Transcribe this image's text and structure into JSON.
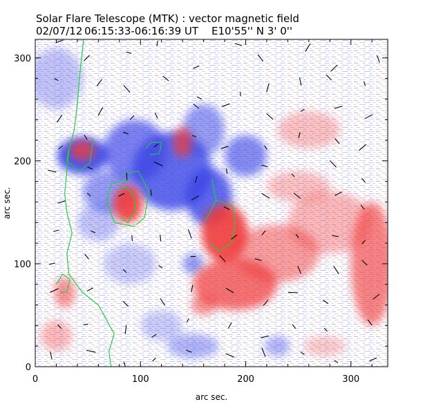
{
  "header": {
    "title": "Solar Flare Telescope (MTK) : vector magnetic field",
    "date": "02/07/12",
    "time_range": "06:15:33-06:16:39 UT",
    "position": "E10'55''  N 3' 0''"
  },
  "axes": {
    "xlabel": "arc sec.",
    "ylabel": "arc sec.",
    "xlim": [
      0,
      335
    ],
    "ylim": [
      0,
      318
    ],
    "xticks": [
      0,
      100,
      200,
      300
    ],
    "yticks": [
      0,
      100,
      200,
      300
    ],
    "xminor_step": 20,
    "yminor_step": 20
  },
  "colors": {
    "negative_polarity": "#3c46e6",
    "positive_polarity": "#f03c3c",
    "contour": "#22cc44",
    "vector": "#000000",
    "background": "#ffffff"
  },
  "chart_data": {
    "type": "heatmap",
    "title": "Solar Flare Telescope (MTK) : vector magnetic field",
    "xlabel": "arc sec.",
    "ylabel": "arc sec.",
    "xlim": [
      0,
      335
    ],
    "ylim": [
      0,
      318
    ],
    "legend": "none",
    "grid": false,
    "negative_regions": [
      {
        "x": 45,
        "y": 205,
        "rx": 24,
        "ry": 18,
        "w": 1.0
      },
      {
        "x": 95,
        "y": 210,
        "rx": 30,
        "ry": 30,
        "w": 0.75
      },
      {
        "x": 130,
        "y": 190,
        "rx": 38,
        "ry": 38,
        "w": 0.9
      },
      {
        "x": 165,
        "y": 165,
        "rx": 22,
        "ry": 28,
        "w": 0.9
      },
      {
        "x": 160,
        "y": 230,
        "rx": 20,
        "ry": 25,
        "w": 0.6
      },
      {
        "x": 70,
        "y": 170,
        "rx": 25,
        "ry": 20,
        "w": 0.6
      },
      {
        "x": 200,
        "y": 205,
        "rx": 20,
        "ry": 20,
        "w": 0.7
      },
      {
        "x": 150,
        "y": 100,
        "rx": 10,
        "ry": 10,
        "w": 0.6
      },
      {
        "x": 150,
        "y": 20,
        "rx": 24,
        "ry": 12,
        "w": 0.45
      },
      {
        "x": 230,
        "y": 20,
        "rx": 12,
        "ry": 10,
        "w": 0.45
      },
      {
        "x": 20,
        "y": 280,
        "rx": 25,
        "ry": 30,
        "w": 0.35
      },
      {
        "x": 60,
        "y": 140,
        "rx": 20,
        "ry": 18,
        "w": 0.35
      },
      {
        "x": 90,
        "y": 100,
        "rx": 25,
        "ry": 20,
        "w": 0.3
      },
      {
        "x": 120,
        "y": 40,
        "rx": 20,
        "ry": 15,
        "w": 0.3
      }
    ],
    "positive_regions": [
      {
        "x": 180,
        "y": 130,
        "rx": 22,
        "ry": 28,
        "w": 1.0
      },
      {
        "x": 88,
        "y": 158,
        "rx": 14,
        "ry": 18,
        "w": 1.0
      },
      {
        "x": 45,
        "y": 210,
        "rx": 12,
        "ry": 10,
        "w": 0.85
      },
      {
        "x": 140,
        "y": 218,
        "rx": 9,
        "ry": 15,
        "w": 0.8
      },
      {
        "x": 190,
        "y": 80,
        "rx": 40,
        "ry": 25,
        "w": 0.8
      },
      {
        "x": 230,
        "y": 110,
        "rx": 40,
        "ry": 28,
        "w": 0.55
      },
      {
        "x": 320,
        "y": 100,
        "rx": 20,
        "ry": 60,
        "w": 0.7
      },
      {
        "x": 280,
        "y": 140,
        "rx": 40,
        "ry": 30,
        "w": 0.4
      },
      {
        "x": 28,
        "y": 72,
        "rx": 10,
        "ry": 15,
        "w": 0.6
      },
      {
        "x": 160,
        "y": 60,
        "rx": 12,
        "ry": 10,
        "w": 0.6
      },
      {
        "x": 260,
        "y": 230,
        "rx": 30,
        "ry": 18,
        "w": 0.35
      },
      {
        "x": 250,
        "y": 175,
        "rx": 30,
        "ry": 15,
        "w": 0.35
      },
      {
        "x": 20,
        "y": 30,
        "rx": 15,
        "ry": 15,
        "w": 0.4
      },
      {
        "x": 275,
        "y": 20,
        "rx": 20,
        "ry": 10,
        "w": 0.3
      }
    ],
    "limb_line": [
      [
        46,
        318
      ],
      [
        44,
        300
      ],
      [
        42,
        280
      ],
      [
        40,
        255
      ],
      [
        37,
        230
      ],
      [
        32,
        210
      ],
      [
        30,
        190
      ],
      [
        28,
        168
      ],
      [
        30,
        150
      ],
      [
        35,
        130
      ],
      [
        30,
        110
      ],
      [
        32,
        90
      ],
      [
        45,
        72
      ],
      [
        60,
        60
      ],
      [
        68,
        45
      ],
      [
        75,
        32
      ],
      [
        70,
        15
      ],
      [
        72,
        0
      ]
    ],
    "contours": [
      [
        [
          55,
          222
        ],
        [
          52,
          198
        ],
        [
          42,
          190
        ],
        [
          30,
          200
        ],
        [
          32,
          212
        ]
      ],
      [
        [
          80,
          172
        ],
        [
          86,
          175
        ],
        [
          94,
          165
        ],
        [
          95,
          152
        ],
        [
          88,
          140
        ],
        [
          82,
          145
        ]
      ],
      [
        [
          90,
          182
        ],
        [
          72,
          178
        ],
        [
          68,
          160
        ],
        [
          75,
          140
        ],
        [
          95,
          136
        ]
      ],
      [
        [
          162,
          142
        ],
        [
          172,
          162
        ],
        [
          188,
          156
        ],
        [
          190,
          138
        ],
        [
          186,
          120
        ],
        [
          175,
          112
        ],
        [
          166,
          120
        ]
      ],
      [
        [
          172,
          160
        ],
        [
          168,
          182
        ]
      ],
      [
        [
          105,
          212
        ],
        [
          110,
          218
        ],
        [
          120,
          218
        ],
        [
          118,
          207
        ],
        [
          109,
          206
        ]
      ],
      [
        [
          20,
          80
        ],
        [
          26,
          90
        ],
        [
          33,
          85
        ],
        [
          30,
          73
        ],
        [
          24,
          72
        ]
      ],
      [
        [
          84,
          188
        ],
        [
          98,
          190
        ],
        [
          108,
          170
        ],
        [
          104,
          145
        ],
        [
          96,
          138
        ]
      ]
    ],
    "vectors": [
      {
        "x": 23,
        "y": 316,
        "dx": 0.94,
        "dy": 0.34,
        "s": 0.84
      },
      {
        "x": 49,
        "y": 300,
        "dx": 0.71,
        "dy": 0.71,
        "s": 0.78
      },
      {
        "x": 89,
        "y": 305,
        "dx": 0.97,
        "dy": -0.26,
        "s": 0.52
      },
      {
        "x": 116,
        "y": 314,
        "dx": 0.17,
        "dy": 0.98,
        "s": 0.57
      },
      {
        "x": 153,
        "y": 291,
        "dx": 0.91,
        "dy": 0.42,
        "s": 0.69
      },
      {
        "x": 193,
        "y": 313,
        "dx": 0.96,
        "dy": -0.28,
        "s": 0.76
      },
      {
        "x": 214,
        "y": 300,
        "dx": 0.62,
        "dy": -0.79,
        "s": 0.89
      },
      {
        "x": 259,
        "y": 310,
        "dx": 0.52,
        "dy": 0.85,
        "s": 0.95
      },
      {
        "x": 284,
        "y": 290,
        "dx": 0.72,
        "dy": 0.69,
        "s": 0.97
      },
      {
        "x": 326,
        "y": 299,
        "dx": -0.33,
        "dy": 0.94,
        "s": 0.78
      },
      {
        "x": 20,
        "y": 279,
        "dx": 0.89,
        "dy": -0.45,
        "s": 0.48
      },
      {
        "x": 61,
        "y": 276,
        "dx": 0.6,
        "dy": 0.8,
        "s": 0.88
      },
      {
        "x": 87,
        "y": 270,
        "dx": -0.67,
        "dy": 0.74,
        "s": 0.99
      },
      {
        "x": 124,
        "y": 280,
        "dx": 0.78,
        "dy": -0.62,
        "s": 0.79
      },
      {
        "x": 156,
        "y": 261,
        "dx": 0.91,
        "dy": -0.41,
        "s": 0.54
      },
      {
        "x": 195,
        "y": 265,
        "dx": -0.03,
        "dy": 1.0,
        "s": 0.46
      },
      {
        "x": 221,
        "y": 271,
        "dx": 0.27,
        "dy": 0.96,
        "s": 0.93
      },
      {
        "x": 252,
        "y": 277,
        "dx": 0.2,
        "dy": -0.98,
        "s": 0.84
      },
      {
        "x": 279,
        "y": 281,
        "dx": 0.7,
        "dy": -0.71,
        "s": 0.77
      },
      {
        "x": 313,
        "y": 275,
        "dx": -0.31,
        "dy": 0.95,
        "s": 0.47
      },
      {
        "x": 23,
        "y": 241,
        "dx": 0.55,
        "dy": 0.83,
        "s": 0.94
      },
      {
        "x": 62,
        "y": 248,
        "dx": 0.5,
        "dy": 0.87,
        "s": 0.98
      },
      {
        "x": 92,
        "y": 242,
        "dx": 0.67,
        "dy": 0.74,
        "s": 0.6
      },
      {
        "x": 115,
        "y": 244,
        "dx": 0.46,
        "dy": -0.89,
        "s": 0.62
      },
      {
        "x": 153,
        "y": 253,
        "dx": 0.79,
        "dy": -0.61,
        "s": 0.74
      },
      {
        "x": 181,
        "y": 254,
        "dx": 0.94,
        "dy": 0.34,
        "s": 0.86
      },
      {
        "x": 223,
        "y": 243,
        "dx": 0.74,
        "dy": -0.67,
        "s": 0.9
      },
      {
        "x": 254,
        "y": 249,
        "dx": 0.88,
        "dy": 0.48,
        "s": 0.45
      },
      {
        "x": 288,
        "y": 252,
        "dx": 0.97,
        "dy": 0.26,
        "s": 0.85
      },
      {
        "x": 317,
        "y": 243,
        "dx": 0.88,
        "dy": 0.47,
        "s": 0.91
      },
      {
        "x": 24,
        "y": 213,
        "dx": 0.79,
        "dy": 0.61,
        "s": 0.59
      },
      {
        "x": 48,
        "y": 223,
        "dx": 0.55,
        "dy": -0.83,
        "s": 0.56
      },
      {
        "x": 86,
        "y": 227,
        "dx": 0.94,
        "dy": -0.34,
        "s": 0.59
      },
      {
        "x": 115,
        "y": 215,
        "dx": 0.79,
        "dy": 0.61,
        "s": 0.59
      },
      {
        "x": 151,
        "y": 224,
        "dx": 0.97,
        "dy": -0.26,
        "s": 0.43
      },
      {
        "x": 180,
        "y": 213,
        "dx": 0.95,
        "dy": 0.31,
        "s": 0.8
      },
      {
        "x": 219,
        "y": 213,
        "dx": -0.57,
        "dy": 0.82,
        "s": 0.47
      },
      {
        "x": 251,
        "y": 225,
        "dx": 0.22,
        "dy": 0.98,
        "s": 0.61
      },
      {
        "x": 287,
        "y": 219,
        "dx": -0.64,
        "dy": 0.77,
        "s": 0.71
      },
      {
        "x": 311,
        "y": 213,
        "dx": 0.76,
        "dy": 0.65,
        "s": 0.97
      },
      {
        "x": 16,
        "y": 190,
        "dx": 0.97,
        "dy": -0.23,
        "s": 0.88
      },
      {
        "x": 52,
        "y": 193,
        "dx": 0.92,
        "dy": -0.4,
        "s": 0.58
      },
      {
        "x": 87,
        "y": 185,
        "dx": -0.04,
        "dy": 1.0,
        "s": 0.75
      },
      {
        "x": 117,
        "y": 197,
        "dx": 0.91,
        "dy": -0.41,
        "s": 0.99
      },
      {
        "x": 153,
        "y": 182,
        "dx": 0.29,
        "dy": 0.96,
        "s": 0.7
      },
      {
        "x": 182,
        "y": 190,
        "dx": -0.15,
        "dy": 0.99,
        "s": 0.53
      },
      {
        "x": 218,
        "y": 195,
        "dx": 0.97,
        "dy": -0.26,
        "s": 0.69
      },
      {
        "x": 245,
        "y": 186,
        "dx": 0.7,
        "dy": -0.71,
        "s": 0.43
      },
      {
        "x": 283,
        "y": 197,
        "dx": 0.69,
        "dy": -0.72,
        "s": 0.98
      },
      {
        "x": 312,
        "y": 181,
        "dx": 0.66,
        "dy": -0.75,
        "s": 0.56
      },
      {
        "x": 25,
        "y": 160,
        "dx": 0.95,
        "dy": 0.32,
        "s": 0.85
      },
      {
        "x": 51,
        "y": 167,
        "dx": 0.71,
        "dy": -0.71,
        "s": 0.47
      },
      {
        "x": 82,
        "y": 167,
        "dx": 0.9,
        "dy": 0.44,
        "s": 0.67
      },
      {
        "x": 110,
        "y": 169,
        "dx": 0.09,
        "dy": -1.0,
        "s": 0.63
      },
      {
        "x": 152,
        "y": 164,
        "dx": 0.86,
        "dy": 0.5,
        "s": 0.89
      },
      {
        "x": 182,
        "y": 154,
        "dx": 0.89,
        "dy": -0.46,
        "s": 0.68
      },
      {
        "x": 219,
        "y": 166,
        "dx": 0.85,
        "dy": -0.52,
        "s": 0.97
      },
      {
        "x": 249,
        "y": 166,
        "dx": 0.79,
        "dy": -0.62,
        "s": 0.91
      },
      {
        "x": 288,
        "y": 168,
        "dx": 0.9,
        "dy": 0.44,
        "s": 0.8
      },
      {
        "x": 311,
        "y": 155,
        "dx": 0.63,
        "dy": -0.77,
        "s": 0.59
      },
      {
        "x": 20,
        "y": 132,
        "dx": 0.96,
        "dy": 0.28,
        "s": 0.61
      },
      {
        "x": 55,
        "y": 131,
        "dx": 0.93,
        "dy": -0.37,
        "s": 0.5
      },
      {
        "x": 92,
        "y": 125,
        "dx": -0.1,
        "dy": 1.0,
        "s": 0.61
      },
      {
        "x": 119,
        "y": 125,
        "dx": 0.11,
        "dy": -0.99,
        "s": 0.67
      },
      {
        "x": 147,
        "y": 129,
        "dx": -0.34,
        "dy": 0.94,
        "s": 0.98
      },
      {
        "x": 189,
        "y": 126,
        "dx": 0.8,
        "dy": 0.6,
        "s": 0.77
      },
      {
        "x": 217,
        "y": 130,
        "dx": 0.61,
        "dy": 0.79,
        "s": 0.59
      },
      {
        "x": 249,
        "y": 127,
        "dx": 0.6,
        "dy": -0.8,
        "s": 0.48
      },
      {
        "x": 285,
        "y": 127,
        "dx": 0.98,
        "dy": -0.22,
        "s": 0.71
      },
      {
        "x": 312,
        "y": 121,
        "dx": 0.69,
        "dy": 0.72,
        "s": 0.54
      },
      {
        "x": 16,
        "y": 100,
        "dx": 0.98,
        "dy": 0.2,
        "s": 0.64
      },
      {
        "x": 49,
        "y": 107,
        "dx": 0.63,
        "dy": -0.78,
        "s": 0.67
      },
      {
        "x": 85,
        "y": 93,
        "dx": 0.7,
        "dy": -0.71,
        "s": 0.48
      },
      {
        "x": 119,
        "y": 97,
        "dx": 0.82,
        "dy": -0.58,
        "s": 0.47
      },
      {
        "x": 150,
        "y": 107,
        "dx": 1.0,
        "dy": -0.02,
        "s": 0.55
      },
      {
        "x": 178,
        "y": 105,
        "dx": 0.66,
        "dy": -0.75,
        "s": 0.92
      },
      {
        "x": 212,
        "y": 104,
        "dx": 0.97,
        "dy": -0.25,
        "s": 0.7
      },
      {
        "x": 251,
        "y": 94,
        "dx": -0.39,
        "dy": 0.92,
        "s": 0.86
      },
      {
        "x": 286,
        "y": 94,
        "dx": 0.53,
        "dy": -0.85,
        "s": 0.99
      },
      {
        "x": 313,
        "y": 101,
        "dx": 0.72,
        "dy": -0.69,
        "s": 0.76
      },
      {
        "x": 18,
        "y": 74,
        "dx": 0.91,
        "dy": 0.42,
        "s": 0.96
      },
      {
        "x": 52,
        "y": 75,
        "dx": 0.88,
        "dy": 0.47,
        "s": 0.7
      },
      {
        "x": 86,
        "y": 61,
        "dx": 0.71,
        "dy": -0.71,
        "s": 0.75
      },
      {
        "x": 121,
        "y": 63,
        "dx": -0.55,
        "dy": 0.84,
        "s": 0.85
      },
      {
        "x": 149,
        "y": 76,
        "dx": 0.21,
        "dy": 0.98,
        "s": 0.75
      },
      {
        "x": 185,
        "y": 74,
        "dx": 0.85,
        "dy": -0.52,
        "s": 0.91
      },
      {
        "x": 219,
        "y": 62,
        "dx": 0.66,
        "dy": 0.76,
        "s": 0.74
      },
      {
        "x": 245,
        "y": 72,
        "dx": 1.0,
        "dy": -0.05,
        "s": 0.99
      },
      {
        "x": 276,
        "y": 63,
        "dx": 0.82,
        "dy": -0.57,
        "s": 0.66
      },
      {
        "x": 324,
        "y": 68,
        "dx": 0.78,
        "dy": 0.62,
        "s": 0.84
      },
      {
        "x": 23,
        "y": 39,
        "dx": 0.69,
        "dy": -0.73,
        "s": 0.54
      },
      {
        "x": 48,
        "y": 41,
        "dx": 0.98,
        "dy": 0.2,
        "s": 0.47
      },
      {
        "x": 86,
        "y": 36,
        "dx": 0.12,
        "dy": 0.99,
        "s": 0.94
      },
      {
        "x": 113,
        "y": 30,
        "dx": 0.82,
        "dy": 0.57,
        "s": 0.59
      },
      {
        "x": 145,
        "y": 45,
        "dx": 0.52,
        "dy": 0.85,
        "s": 0.43
      },
      {
        "x": 185,
        "y": 40,
        "dx": 0.47,
        "dy": 0.88,
        "s": 0.67
      },
      {
        "x": 218,
        "y": 29,
        "dx": 0.97,
        "dy": 0.24,
        "s": 0.84
      },
      {
        "x": 246,
        "y": 39,
        "dx": 0.63,
        "dy": -0.78,
        "s": 0.54
      },
      {
        "x": 276,
        "y": 36,
        "dx": 0.67,
        "dy": -0.74,
        "s": 0.47
      },
      {
        "x": 318,
        "y": 43,
        "dx": 0.6,
        "dy": -0.8,
        "s": 0.74
      },
      {
        "x": 15,
        "y": 11,
        "dx": 0.22,
        "dy": -0.98,
        "s": 0.79
      },
      {
        "x": 53,
        "y": 15,
        "dx": 0.97,
        "dy": -0.23,
        "s": 0.97
      },
      {
        "x": 85,
        "y": 2,
        "dx": -0.28,
        "dy": 0.96,
        "s": 0.67
      },
      {
        "x": 113,
        "y": 7,
        "dx": 0.68,
        "dy": 0.74,
        "s": 0.48
      },
      {
        "x": 146,
        "y": 15,
        "dx": 0.93,
        "dy": -0.38,
        "s": 0.61
      },
      {
        "x": 185,
        "y": 11,
        "dx": 0.92,
        "dy": -0.39,
        "s": 0.93
      },
      {
        "x": 217,
        "y": 14,
        "dx": 0.36,
        "dy": -0.93,
        "s": 0.98
      },
      {
        "x": 254,
        "y": 13,
        "dx": 0.84,
        "dy": -0.54,
        "s": 0.45
      },
      {
        "x": 286,
        "y": 5,
        "dx": 0.85,
        "dy": -0.52,
        "s": 0.45
      },
      {
        "x": 321,
        "y": 7,
        "dx": 0.91,
        "dy": 0.42,
        "s": 0.84
      }
    ]
  }
}
